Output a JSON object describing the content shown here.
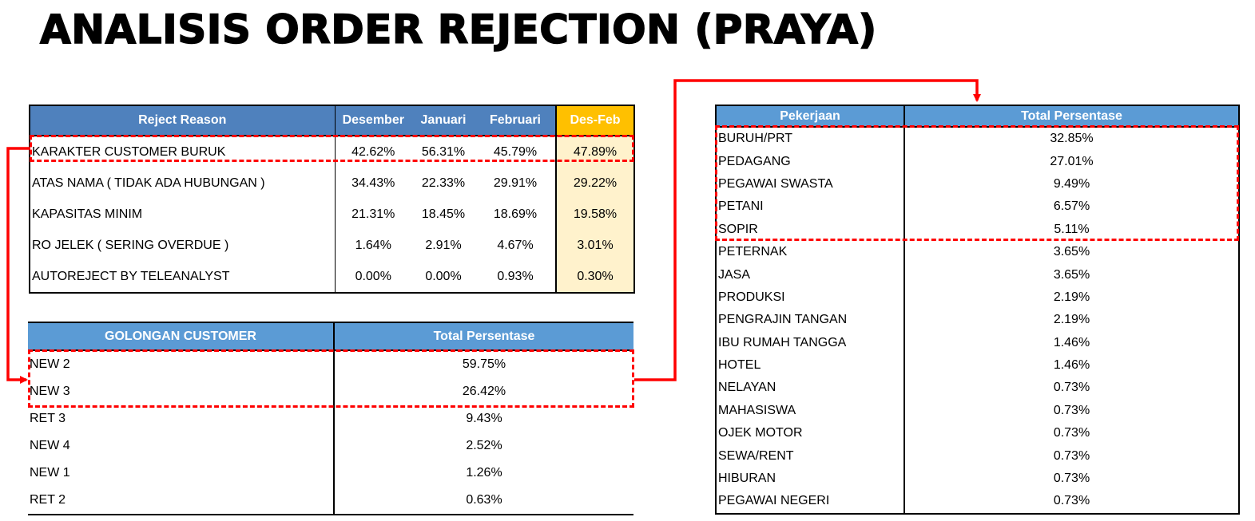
{
  "title": "ANALISIS ORDER REJECTION (PRAYA)",
  "reject_table": {
    "headers": [
      "Reject Reason",
      "Desember",
      "Januari",
      "Februari",
      "Des-Feb"
    ],
    "rows": [
      [
        "KARAKTER CUSTOMER BURUK",
        "42.62%",
        "56.31%",
        "45.79%",
        "47.89%"
      ],
      [
        "ATAS NAMA ( TIDAK ADA HUBUNGAN )",
        "34.43%",
        "22.33%",
        "29.91%",
        "29.22%"
      ],
      [
        "KAPASITAS MINIM",
        "21.31%",
        "18.45%",
        "18.69%",
        "19.58%"
      ],
      [
        "RO JELEK ( SERING OVERDUE )",
        "1.64%",
        "2.91%",
        "4.67%",
        "3.01%"
      ],
      [
        "AUTOREJECT BY TELEANALYST",
        "0.00%",
        "0.00%",
        "0.93%",
        "0.30%"
      ]
    ]
  },
  "golongan_table": {
    "headers": [
      "GOLONGAN CUSTOMER",
      "Total Persentase"
    ],
    "rows": [
      [
        "NEW 2",
        "59.75%"
      ],
      [
        "NEW 3",
        "26.42%"
      ],
      [
        "RET 3",
        "9.43%"
      ],
      [
        "NEW 4",
        "2.52%"
      ],
      [
        "NEW 1",
        "1.26%"
      ],
      [
        "RET 2",
        "0.63%"
      ]
    ]
  },
  "pekerjaan_table": {
    "headers": [
      "Pekerjaan",
      "Total Persentase"
    ],
    "rows": [
      [
        "BURUH/PRT",
        "32.85%"
      ],
      [
        "PEDAGANG",
        "27.01%"
      ],
      [
        "PEGAWAI SWASTA",
        "9.49%"
      ],
      [
        "PETANI",
        "6.57%"
      ],
      [
        "SOPIR",
        "5.11%"
      ],
      [
        "PETERNAK",
        "3.65%"
      ],
      [
        "JASA",
        "3.65%"
      ],
      [
        "PRODUKSI",
        "2.19%"
      ],
      [
        "PENGRAJIN TANGAN",
        "2.19%"
      ],
      [
        "IBU RUMAH TANGGA",
        "1.46%"
      ],
      [
        "HOTEL",
        "1.46%"
      ],
      [
        "NELAYAN",
        "0.73%"
      ],
      [
        "MAHASISWA",
        "0.73%"
      ],
      [
        "OJEK MOTOR",
        "0.73%"
      ],
      [
        "SEWA/RENT",
        "0.73%"
      ],
      [
        "HIBURAN",
        "0.73%"
      ],
      [
        "PEGAWAI NEGERI",
        "0.73%"
      ]
    ]
  },
  "colors": {
    "header_blue": "#5b9bd5",
    "header_gold": "#ffc000",
    "total_fill": "#fff2cc",
    "highlight_red": "#ff0000"
  }
}
